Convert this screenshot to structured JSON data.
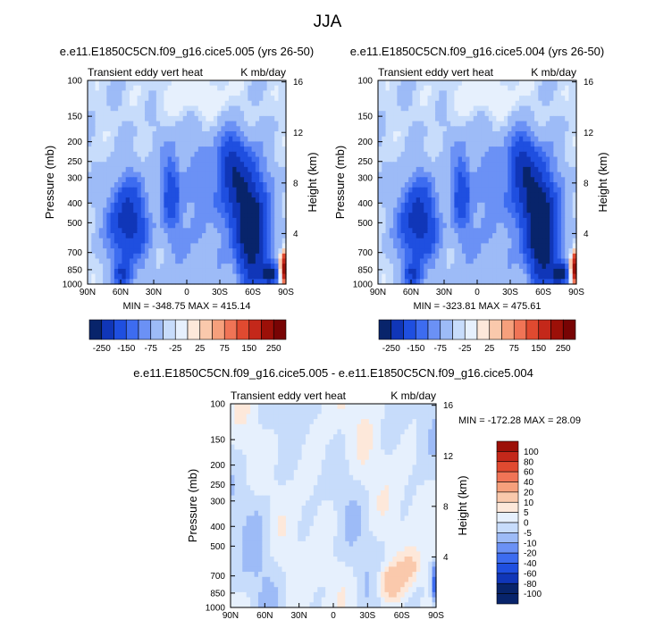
{
  "figure_title": "JJA",
  "colors": {
    "blues": [
      "#08246b",
      "#1036b8",
      "#1f4fe0",
      "#3d6cf0",
      "#6b91f5",
      "#9dbbf7",
      "#c7dcfb",
      "#e6f0fd"
    ],
    "neutral": "#ffffff",
    "reds": [
      "#fde8da",
      "#fac9ac",
      "#f6a07c",
      "#f07456",
      "#e04a30",
      "#c4281a",
      "#9c1008",
      "#780404"
    ],
    "axis": "#000000"
  },
  "chart_data": [
    {
      "type": "heatmap",
      "id": "panel-top-left",
      "title": "e.e11.E1850C5CN.f09_g16.cice5.005 (yrs 26-50)",
      "left_label": "Transient eddy vert heat",
      "right_label": "K mb/day",
      "ylabel": "Pressure (mb)",
      "y2label": "Height (km)",
      "x_ticks": [
        "90N",
        "60N",
        "30N",
        "0",
        "30S",
        "60S",
        "90S"
      ],
      "y_ticks": [
        "100",
        "150",
        "200",
        "250",
        "300",
        "400",
        "500",
        "700",
        "850",
        "1000"
      ],
      "y2_ticks": [
        "16",
        "12",
        "8",
        "4"
      ],
      "stats": "MIN = -348.75   MAX = 415.14",
      "min": -348.75,
      "max": 415.14,
      "colorbar": {
        "orientation": "horizontal",
        "labels": [
          "-250",
          "-150",
          "-75",
          "-25",
          "25",
          "75",
          "150",
          "250"
        ]
      }
    },
    {
      "type": "heatmap",
      "id": "panel-top-right",
      "title": "e.e11.E1850C5CN.f09_g16.cice5.004 (yrs 26-50)",
      "left_label": "Transient eddy vert heat",
      "right_label": "K mb/day",
      "ylabel": "Pressure (mb)",
      "y2label": "Height (km)",
      "x_ticks": [
        "90N",
        "60N",
        "30N",
        "0",
        "30S",
        "60S",
        "90S"
      ],
      "y_ticks": [
        "100",
        "150",
        "200",
        "250",
        "300",
        "400",
        "500",
        "700",
        "850",
        "1000"
      ],
      "y2_ticks": [
        "16",
        "12",
        "8",
        "4"
      ],
      "stats": "MIN = -323.81   MAX = 475.61",
      "min": -323.81,
      "max": 475.61,
      "colorbar": {
        "orientation": "horizontal",
        "labels": [
          "-250",
          "-150",
          "-75",
          "-25",
          "25",
          "75",
          "150",
          "250"
        ]
      }
    },
    {
      "type": "heatmap",
      "id": "panel-difference",
      "title": "e.e11.E1850C5CN.f09_g16.cice5.005 - e.e11.E1850C5CN.f09_g16.cice5.004",
      "left_label": "Transient eddy vert heat",
      "right_label": "K mb/day",
      "ylabel": "Pressure (mb)",
      "y2label": "Height (km)",
      "x_ticks": [
        "90N",
        "60N",
        "30N",
        "0",
        "30S",
        "60S",
        "90S"
      ],
      "y_ticks": [
        "100",
        "150",
        "200",
        "250",
        "300",
        "400",
        "500",
        "700",
        "850",
        "1000"
      ],
      "y2_ticks": [
        "16",
        "12",
        "8",
        "4"
      ],
      "stats": "MIN = -172.28   MAX = 28.09",
      "min": -172.28,
      "max": 28.09,
      "colorbar": {
        "orientation": "vertical",
        "labels": [
          "100",
          "80",
          "60",
          "40",
          "20",
          "10",
          "5",
          "0",
          "-5",
          "-10",
          "-20",
          "-40",
          "-60",
          "-80",
          "-100"
        ]
      }
    }
  ]
}
